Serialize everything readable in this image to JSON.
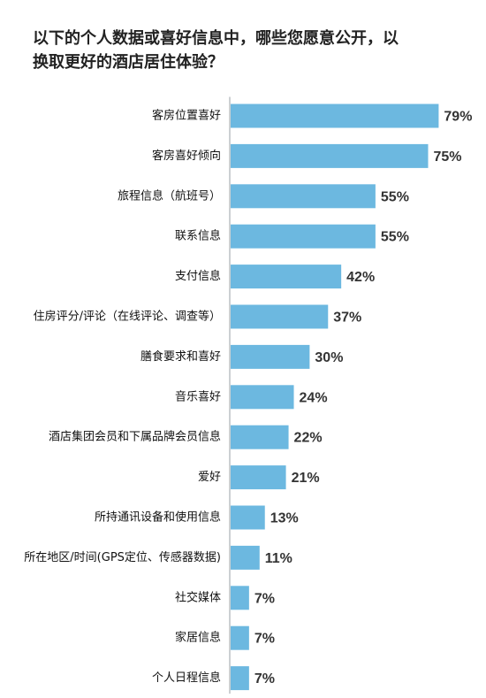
{
  "chart_data": {
    "type": "bar",
    "orientation": "horizontal",
    "title_lines": [
      "以下的个人数据或喜好信息中，哪些您愿意公开，以",
      "换取更好的酒店居住体验？"
    ],
    "categories": [
      "客房位置喜好",
      "客房喜好倾向",
      "旅程信息（航班号）",
      "联系信息",
      "支付信息",
      "住房评分/评论（在线评论、调查等）",
      "膳食要求和喜好",
      "音乐喜好",
      "酒店集团会员和下属品牌会员信息",
      "爱好",
      "所持通讯设备和使用信息",
      "所在地区/时间(GPS定位、传感器数据)",
      "社交媒体",
      "家居信息",
      "个人日程信息"
    ],
    "values": [
      79,
      75,
      55,
      55,
      42,
      37,
      30,
      24,
      22,
      21,
      13,
      11,
      7,
      7,
      7
    ],
    "value_labels": [
      "79%",
      "75%",
      "55%",
      "55%",
      "42%",
      "37%",
      "30%",
      "24%",
      "22%",
      "21%",
      "13%",
      "11%",
      "7%",
      "7%",
      "7%"
    ],
    "unit": "%",
    "bar_color": "#6cb8e0",
    "grid": false,
    "legend": "none"
  }
}
